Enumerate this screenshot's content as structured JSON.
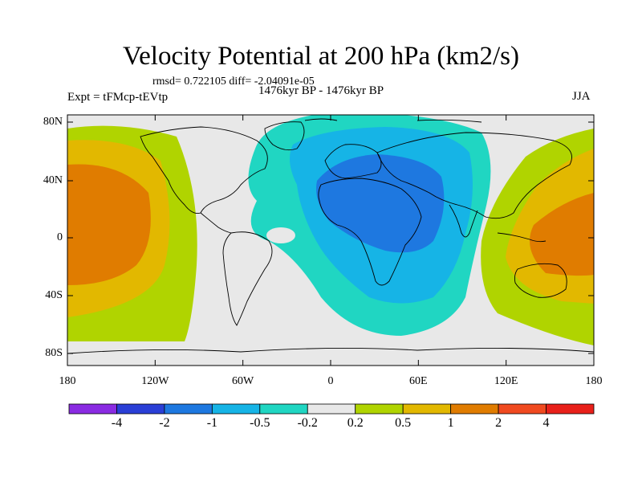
{
  "title": "Velocity Potential at 200 hPa (km2/s)",
  "stats": "rmsd= 0.722105 diff= -2.04091e-05",
  "experiment": "Expt = tFMcp-tEVtp",
  "period": "1476kyr BP - 1476kyr BP",
  "season": "JJA",
  "lat_labels": [
    "80N",
    "40N",
    "0",
    "40S",
    "80S"
  ],
  "lon_labels": [
    "180",
    "120W",
    "60W",
    "0",
    "60E",
    "120E",
    "180"
  ],
  "colorbar": {
    "labels": [
      "-4",
      "-2",
      "-1",
      "-0.5",
      "-0.2",
      "0.2",
      "0.5",
      "1",
      "2",
      "4"
    ],
    "colors": [
      "#8a2be2",
      "#2a3fd6",
      "#1e78e0",
      "#16b4e6",
      "#20d6c2",
      "#e8e8e8",
      "#b0d400",
      "#e2b800",
      "#e07c00",
      "#f04a20",
      "#e8201a"
    ]
  },
  "colors": {
    "ocean_bg": "#e8e8e8",
    "coast": "#000000"
  }
}
